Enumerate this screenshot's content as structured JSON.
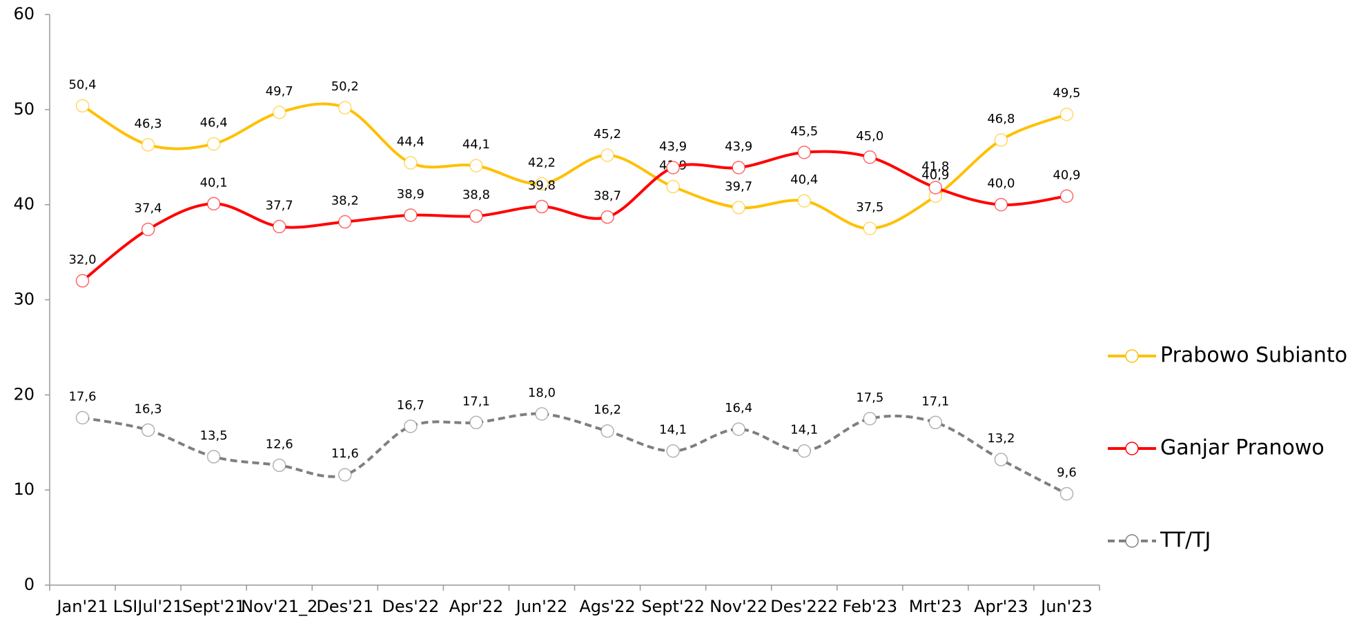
{
  "chart_data": {
    "type": "line",
    "categories": [
      "Jan'21",
      "LSIJul'21",
      "Sept'21",
      "Nov'21_2",
      "Des'21",
      "Des'22",
      "Apr'22",
      "Jun'22",
      "Ags'22",
      "Sept'22",
      "Nov'22",
      "Des'222",
      "Feb'23",
      "Mrt'23",
      "Apr'23",
      "Jun'23"
    ],
    "series": [
      {
        "name": "Prabowo Subianto",
        "color": "#ffc000",
        "line_style": "solid",
        "values": [
          50.4,
          46.3,
          46.4,
          49.7,
          50.2,
          44.4,
          44.1,
          42.2,
          45.2,
          41.9,
          39.7,
          40.4,
          37.5,
          40.9,
          46.8,
          49.5
        ],
        "value_labels": [
          "50,4",
          "46,3",
          "46,4",
          "49,7",
          "50,2",
          "44,4",
          "44,1",
          "42,2",
          "45,2",
          "41,9",
          "39,7",
          "40,4",
          "37,5",
          "40,9",
          "46,8",
          "49,5"
        ]
      },
      {
        "name": "Ganjar Pranowo",
        "color": "#ff0000",
        "line_style": "solid",
        "values": [
          32.0,
          37.4,
          40.1,
          37.7,
          38.2,
          38.9,
          38.8,
          39.8,
          38.7,
          43.9,
          43.9,
          45.5,
          45.0,
          41.8,
          40.0,
          40.9
        ],
        "value_labels": [
          "32,0",
          "37,4",
          "40,1",
          "37,7",
          "38,2",
          "38,9",
          "38,8",
          "39,8",
          "38,7",
          "43,9",
          "43,9",
          "45,5",
          "45,0",
          "41,8",
          "40,0",
          "40,9"
        ]
      },
      {
        "name": "TT/TJ",
        "color": "#7f7f7f",
        "line_style": "dashed",
        "values": [
          17.6,
          16.3,
          13.5,
          12.6,
          11.6,
          16.7,
          17.1,
          18.0,
          16.2,
          14.1,
          16.4,
          14.1,
          17.5,
          17.1,
          13.2,
          9.6
        ],
        "value_labels": [
          "17,6",
          "16,3",
          "13,5",
          "12,6",
          "11,6",
          "16,7",
          "17,1",
          "18,0",
          "16,2",
          "14,1",
          "16,4",
          "14,1",
          "17,5",
          "17,1",
          "13,2",
          "9,6"
        ]
      }
    ],
    "ylim": [
      0,
      60
    ],
    "yticks": [
      0,
      10,
      20,
      30,
      40,
      50,
      60
    ],
    "grid": false,
    "legend": "right"
  }
}
